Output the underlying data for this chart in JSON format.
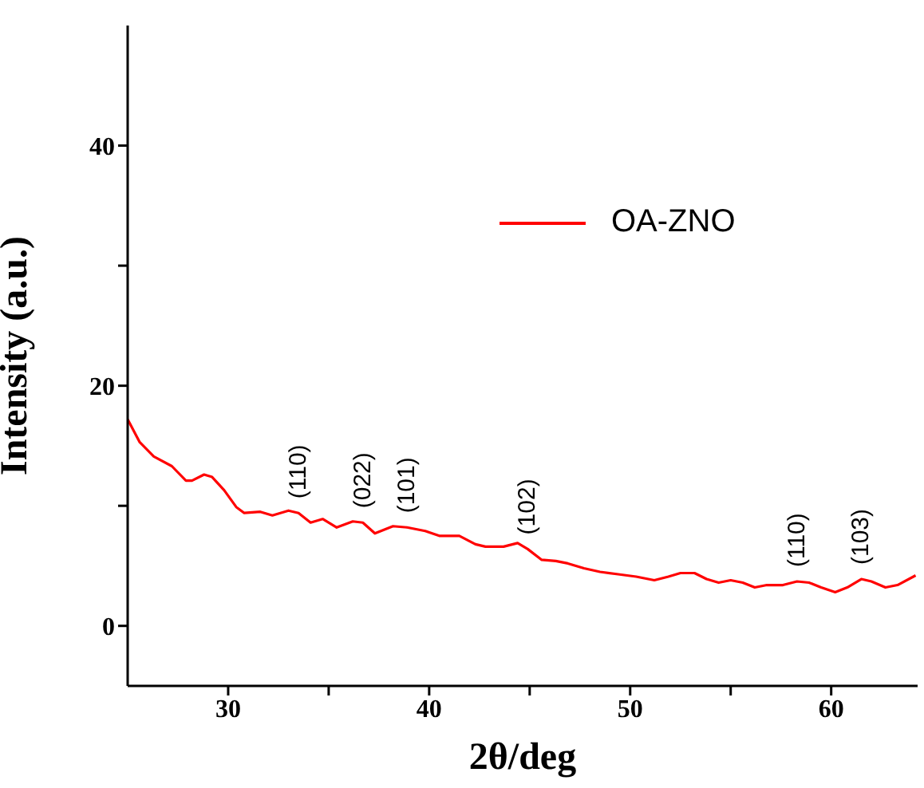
{
  "chart_data": {
    "type": "line",
    "xlabel": "2θ/deg",
    "ylabel": "Intensity (a.u.)",
    "xlim": [
      25,
      64.3
    ],
    "ylim": [
      -5,
      50
    ],
    "xticks": [
      30,
      {
        "value": 35,
        "label": null
      },
      40,
      {
        "value": 45,
        "label": null
      },
      50,
      {
        "value": 55,
        "label": null
      },
      60
    ],
    "yticks": [
      0,
      {
        "value": 10,
        "label": null
      },
      20,
      {
        "value": 30,
        "label": null
      },
      40
    ],
    "grid": false,
    "legend": "top right",
    "marker": "none",
    "line_style": "solid",
    "series": [
      {
        "name": "OA-ZNO",
        "color": "#ff0000",
        "x": [
          25,
          25.6,
          26.3,
          27.2,
          27.9,
          28.2,
          28.8,
          29.2,
          29.8,
          30.4,
          30.8,
          31.6,
          32.2,
          33.0,
          33.5,
          34.1,
          34.7,
          35.4,
          36.2,
          36.7,
          37.3,
          38.2,
          38.9,
          39.8,
          40.5,
          41.1,
          41.5,
          42.3,
          42.8,
          43.7,
          44.4,
          44.9,
          45.6,
          46.3,
          46.9,
          47.7,
          48.5,
          49.4,
          50.3,
          51.2,
          51.9,
          52.5,
          53.2,
          53.8,
          54.4,
          55.0,
          55.6,
          56.2,
          56.8,
          57.6,
          58.3,
          58.9,
          59.5,
          60.2,
          60.8,
          61.5,
          62.0,
          62.7,
          63.3,
          64.2
        ],
        "values": [
          17.2,
          15.3,
          14.1,
          13.3,
          12.1,
          12.1,
          12.6,
          12.4,
          11.3,
          9.9,
          9.4,
          9.5,
          9.2,
          9.6,
          9.4,
          8.6,
          8.9,
          8.2,
          8.7,
          8.6,
          7.7,
          8.3,
          8.2,
          7.9,
          7.5,
          7.5,
          7.5,
          6.8,
          6.6,
          6.6,
          6.9,
          6.4,
          5.5,
          5.4,
          5.2,
          4.8,
          4.5,
          4.3,
          4.1,
          3.8,
          4.1,
          4.4,
          4.4,
          3.9,
          3.6,
          3.8,
          3.6,
          3.2,
          3.4,
          3.4,
          3.7,
          3.6,
          3.2,
          2.8,
          3.2,
          3.9,
          3.7,
          3.2,
          3.4,
          4.2
        ]
      }
    ],
    "annotations": [
      {
        "text": "(110)",
        "x": 33.5,
        "y": 9.4
      },
      {
        "text": "(022)",
        "x": 36.7,
        "y": 8.6
      },
      {
        "text": "(101)",
        "x": 38.9,
        "y": 8.2
      },
      {
        "text": "(102)",
        "x": 44.9,
        "y": 6.4
      },
      {
        "text": "(110)",
        "x": 58.3,
        "y": 3.7
      },
      {
        "text": "(103)",
        "x": 61.5,
        "y": 3.9
      }
    ]
  }
}
